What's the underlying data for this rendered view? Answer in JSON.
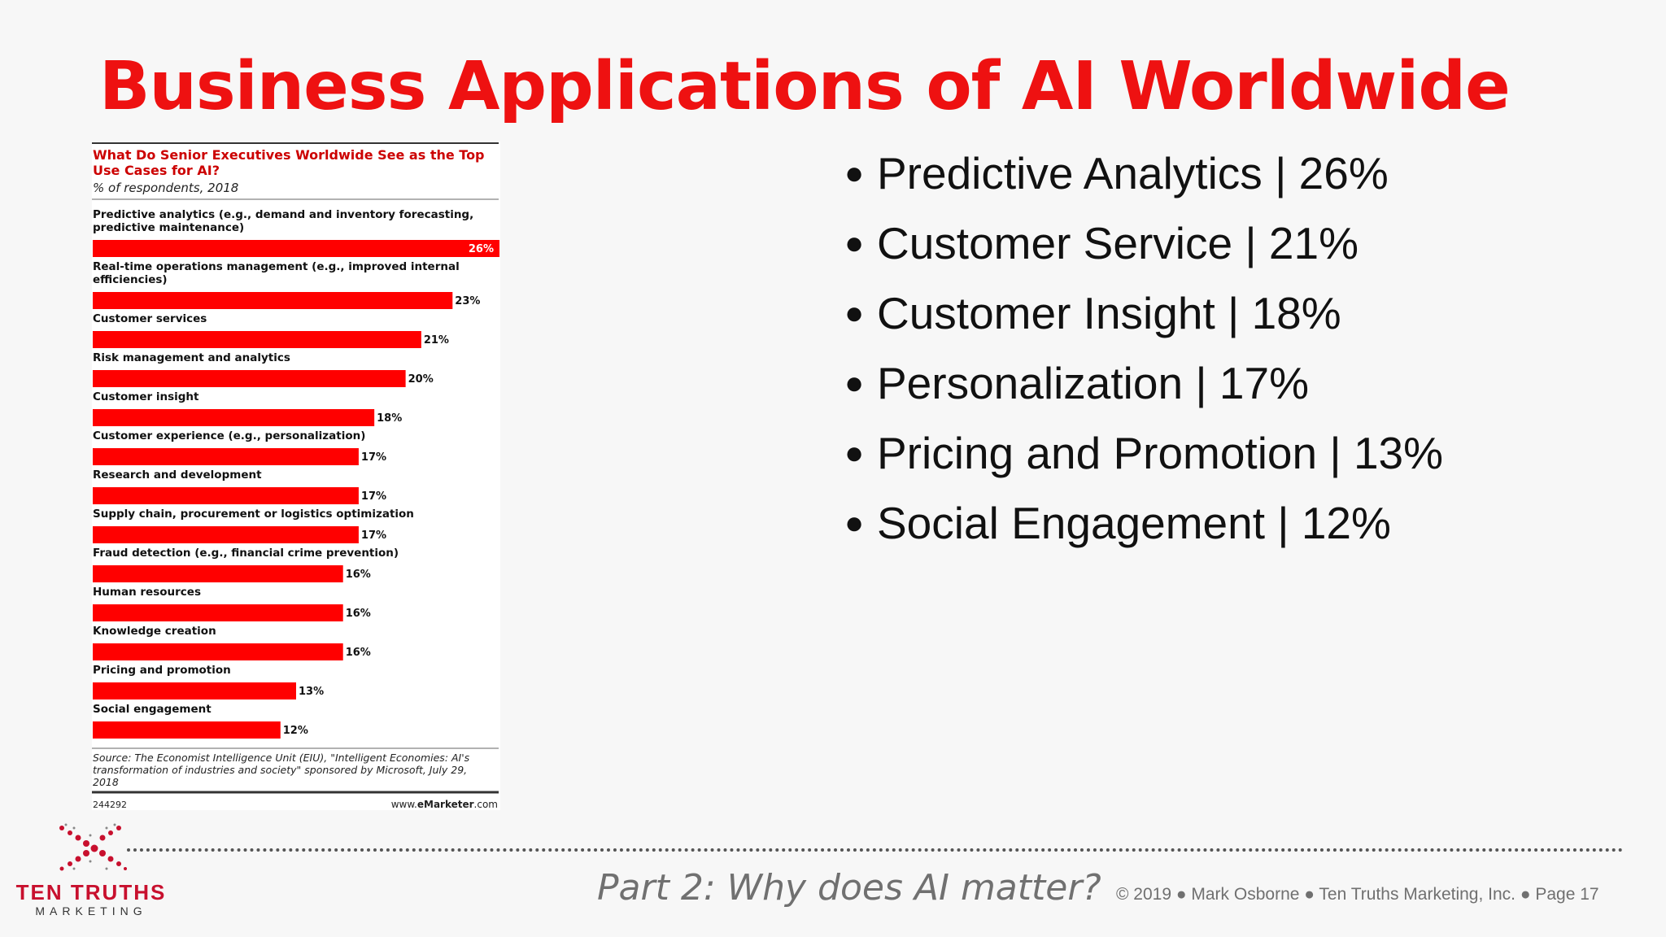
{
  "title": "Business Applications of AI Worldwide",
  "bullets": [
    "Predictive Analytics | 26%",
    "Customer Service | 21%",
    "Customer Insight | 18%",
    "Personalization | 17%",
    "Pricing and Promotion | 13%",
    "Social Engagement | 12%"
  ],
  "chart_data": {
    "type": "bar",
    "orientation": "horizontal",
    "title": "What Do Senior Executives Worldwide See as the Top Use Cases for AI?",
    "title_lines": [
      "What Do Senior Executives Worldwide See as the Top",
      "Use Cases for AI?"
    ],
    "subtitle": "% of respondents, 2018",
    "categories": [
      "Predictive analytics (e.g., demand and inventory forecasting, predictive maintenance)",
      "Real-time operations management (e.g., improved internal efficiencies)",
      "Customer services",
      "Risk management and analytics",
      "Customer insight",
      "Customer experience (e.g., personalization)",
      "Research and development",
      "Supply chain, procurement or logistics optimization",
      "Fraud detection (e.g., financial crime prevention)",
      "Human resources",
      "Knowledge creation",
      "Pricing and promotion",
      "Social engagement"
    ],
    "label_lines": [
      [
        "Predictive analytics (e.g., demand and inventory forecasting,",
        "predictive maintenance)"
      ],
      [
        "Real-time operations management (e.g., improved internal",
        "efficiencies)"
      ],
      [
        "Customer services"
      ],
      [
        "Risk management and analytics"
      ],
      [
        "Customer insight"
      ],
      [
        "Customer experience (e.g., personalization)"
      ],
      [
        "Research and development"
      ],
      [
        "Supply chain, procurement or logistics optimization"
      ],
      [
        "Fraud detection (e.g., financial crime prevention)"
      ],
      [
        "Human resources"
      ],
      [
        "Knowledge creation"
      ],
      [
        "Pricing and promotion"
      ],
      [
        "Social engagement"
      ]
    ],
    "values": [
      26,
      23,
      21,
      20,
      18,
      17,
      17,
      17,
      16,
      16,
      16,
      13,
      12
    ],
    "value_labels": [
      "26%",
      "23%",
      "21%",
      "20%",
      "18%",
      "17%",
      "17%",
      "17%",
      "16%",
      "16%",
      "16%",
      "13%",
      "12%"
    ],
    "xlim": [
      0,
      26
    ],
    "bar_color": "#ff0000",
    "source_lines": [
      "Source: The Economist Intelligence Unit (EIU), \"Intelligent Economies: AI's",
      "transformation of industries and society\" sponsored by Microsoft, July 29,",
      "2018"
    ],
    "chart_id": "244292",
    "credit_prefix": "www.",
    "credit_brand": "eMarketer",
    "credit_suffix": ".com"
  },
  "footer": {
    "subtitle": "Part 2: Why does AI matter?",
    "copyright": "© 2019 ● Mark Osborne ● Ten Truths Marketing, Inc. ● Page 17",
    "logo_name": "TEN TRUTHS",
    "logo_sub": "MARKETING"
  },
  "colors": {
    "title": "#ee1111",
    "bar": "#ff0000",
    "chart_title": "#cc0000",
    "logo": "#c8102e"
  }
}
